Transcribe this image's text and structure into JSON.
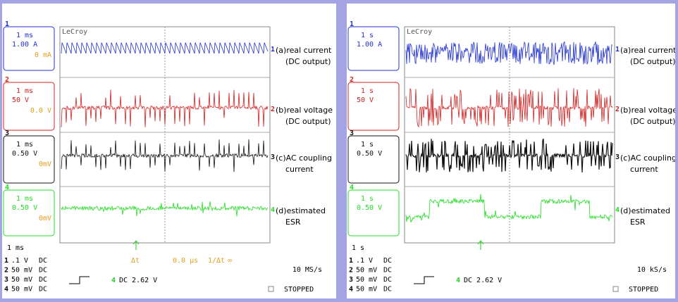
{
  "panels": [
    {
      "brand": "LeCroy",
      "timebase": "1 ms",
      "channels": [
        {
          "number": "1",
          "timebase": "1 ms",
          "scale": "1.00 A",
          "offset": "0 mA",
          "label": "(a)real current",
          "sublabel": "(DC output)"
        },
        {
          "number": "2",
          "timebase": "1 ms",
          "scale": "50 V",
          "offset": "0.0 V",
          "label": "(b)real voltage",
          "sublabel": "(DC output)"
        },
        {
          "number": "3",
          "timebase": "1 ms",
          "scale": "0.50 V",
          "offset": "0mV",
          "label": "(c)AC coupling",
          "sublabel": "current"
        },
        {
          "number": "4",
          "timebase": "1 ms",
          "scale": "0.50 V",
          "offset": "0mV",
          "label": "(d)estimated",
          "sublabel": "ESR"
        }
      ],
      "inputs": [
        {
          "number": "1",
          "scale": ".1 V",
          "coupling": "DC"
        },
        {
          "number": "2",
          "scale": "50 mV",
          "coupling": "DC"
        },
        {
          "number": "3",
          "scale": "50 mV",
          "coupling": "DC"
        },
        {
          "number": "4",
          "scale": "50 mV",
          "coupling": "DC"
        }
      ],
      "cursor": {
        "delta_label": "Δt",
        "delta": "0.0 μs",
        "inverse_label": "1/Δt",
        "inverse": "∞"
      },
      "trigger_channel": "4",
      "trigger": "DC 2.62 V",
      "sample_rate": "10 MS/s",
      "status": "STOPPED"
    },
    {
      "brand": "LeCroy",
      "timebase": "1 s",
      "channels": [
        {
          "number": "1",
          "timebase": "1 s",
          "scale": "1.00 A",
          "label": "(a)real current",
          "sublabel": "(DC output)"
        },
        {
          "number": "2",
          "timebase": "1 s",
          "scale": "50 V",
          "label": "(b)real voltage",
          "sublabel": "(DC output)"
        },
        {
          "number": "3",
          "timebase": "1 s",
          "scale": "0.50 V",
          "label": "(c)AC coupling",
          "sublabel": "current"
        },
        {
          "number": "4",
          "timebase": "1 s",
          "scale": "0.50 V",
          "label": "(d)estimated",
          "sublabel": "ESR"
        }
      ],
      "inputs": [
        {
          "number": "1",
          "scale": ".1 V",
          "coupling": "DC"
        },
        {
          "number": "2",
          "scale": "50 mV",
          "coupling": "DC"
        },
        {
          "number": "3",
          "scale": "50 mV",
          "coupling": "DC"
        },
        {
          "number": "4",
          "scale": "50 mV",
          "coupling": "DC"
        }
      ],
      "trigger_channel": "4",
      "trigger": "DC 2.62 V",
      "sample_rate": "10 kS/s",
      "status": "STOPPED"
    }
  ]
}
